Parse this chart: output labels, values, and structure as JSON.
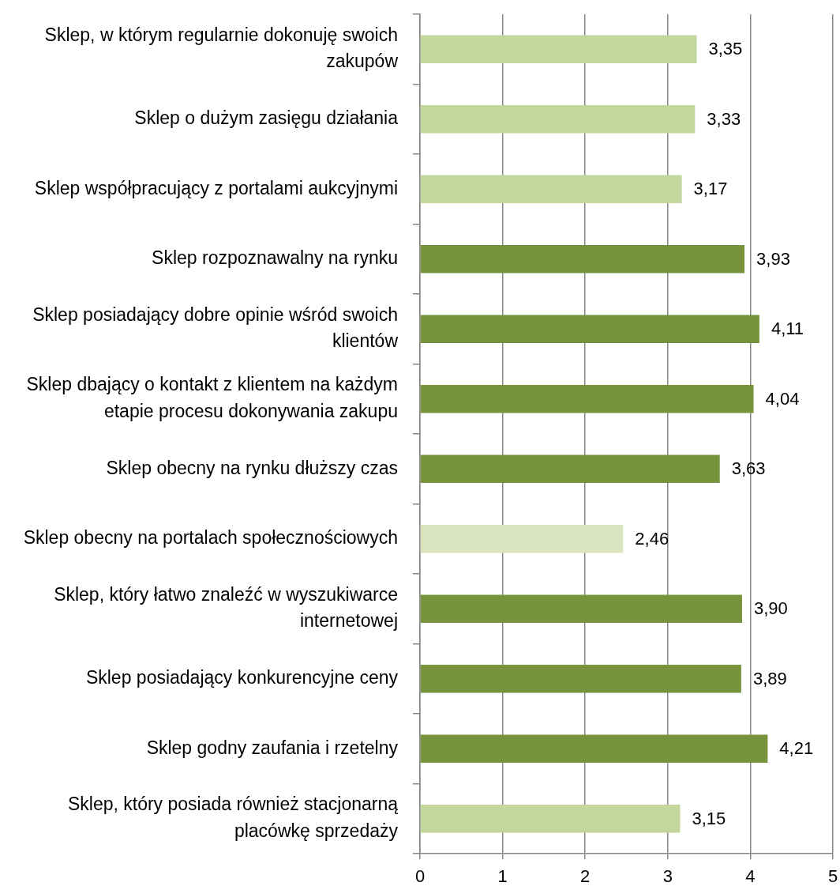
{
  "chart_data": {
    "type": "bar",
    "orientation": "horizontal",
    "categories": [
      "Sklep, w którym regularnie dokonuję swoich zakupów",
      "Sklep o dużym zasięgu działania",
      "Sklep współpracujący z portalami aukcyjnymi",
      "Sklep rozpoznawalny na rynku",
      "Sklep posiadający dobre opinie wśród swoich klientów",
      "Sklep dbający o kontakt z klientem na każdym etapie procesu dokonywania zakupu",
      "Sklep obecny na rynku dłuższy czas",
      "Sklep obecny na portalach społecznościowych",
      "Sklep, który łatwo znaleźć w wyszukiwarce internetowej",
      "Sklep posiadający konkurencyjne ceny",
      "Sklep godny zaufania i rzetelny",
      "Sklep, który posiada również stacjonarną placówkę sprzedaży"
    ],
    "values": [
      3.35,
      3.33,
      3.17,
      3.93,
      4.11,
      4.04,
      3.63,
      2.46,
      3.9,
      3.89,
      4.21,
      3.15
    ],
    "colors": [
      "#c3d69b",
      "#c3d69b",
      "#c3d69b",
      "#77933c",
      "#77933c",
      "#77933c",
      "#77933c",
      "#d7e4bd",
      "#77933c",
      "#77933c",
      "#77933c",
      "#c3d69b"
    ],
    "value_labels": [
      "3,35",
      "3,33",
      "3,17",
      "3,93",
      "4,11",
      "4,04",
      "3,63",
      "2,46",
      "3,90",
      "3,89",
      "4,21",
      "3,15"
    ],
    "xlim": [
      0,
      5
    ],
    "xticks": [
      0,
      1,
      2,
      3,
      4,
      5
    ],
    "grid": "x"
  }
}
